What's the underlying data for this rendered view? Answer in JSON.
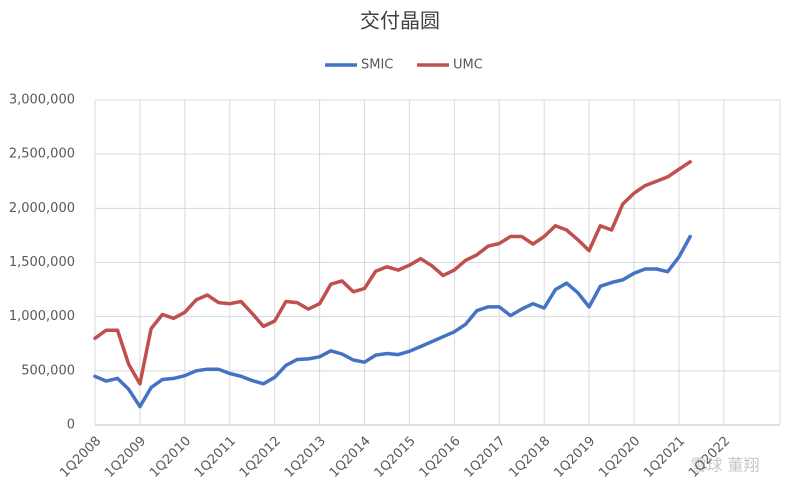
{
  "chart_data": {
    "type": "line",
    "title": "交付晶圆",
    "categories": [
      "1Q2008",
      null,
      null,
      null,
      "1Q2009",
      null,
      null,
      null,
      "1Q2010",
      null,
      null,
      null,
      "1Q2011",
      null,
      null,
      null,
      "1Q2012",
      null,
      null,
      null,
      "1Q2013",
      null,
      null,
      null,
      "1Q2014",
      null,
      null,
      null,
      "1Q2015",
      null,
      null,
      null,
      "1Q2016",
      null,
      null,
      null,
      "1Q2017",
      null,
      null,
      null,
      "1Q2018",
      null,
      null,
      null,
      "1Q2019",
      null,
      null,
      null,
      "1Q2020",
      null,
      null,
      null,
      "1Q2021",
      null,
      null,
      null,
      "1Q2022",
      null,
      null,
      null
    ],
    "series": [
      {
        "name": "SMIC",
        "color": "#4472c4",
        "values": [
          450000,
          405000,
          430000,
          330000,
          170000,
          345000,
          420000,
          430000,
          455000,
          500000,
          515000,
          515000,
          475000,
          450000,
          410000,
          380000,
          440000,
          550000,
          605000,
          610000,
          630000,
          685000,
          655000,
          600000,
          580000,
          645000,
          660000,
          650000,
          680000,
          725000,
          770000,
          815000,
          860000,
          930000,
          1055000,
          1090000,
          1090000,
          1010000,
          1070000,
          1120000,
          1080000,
          1250000,
          1310000,
          1220000,
          1090000,
          1280000,
          1315000,
          1340000,
          1400000,
          1440000,
          1440000,
          1415000,
          1550000,
          1740000,
          null,
          null,
          null,
          null,
          null,
          null
        ]
      },
      {
        "name": "UMC",
        "color": "#c0504d",
        "values": [
          800000,
          875000,
          875000,
          560000,
          380000,
          890000,
          1020000,
          985000,
          1040000,
          1155000,
          1200000,
          1130000,
          1120000,
          1140000,
          1030000,
          910000,
          960000,
          1140000,
          1130000,
          1070000,
          1120000,
          1300000,
          1330000,
          1230000,
          1260000,
          1420000,
          1460000,
          1430000,
          1475000,
          1535000,
          1470000,
          1380000,
          1430000,
          1520000,
          1570000,
          1650000,
          1675000,
          1740000,
          1740000,
          1670000,
          1740000,
          1840000,
          1800000,
          1710000,
          1610000,
          1840000,
          1800000,
          2040000,
          2140000,
          2210000,
          2250000,
          2290000,
          2360000,
          2430000,
          null,
          null,
          null,
          null,
          null,
          null
        ]
      }
    ],
    "ylim": [
      0,
      3000000
    ],
    "yticks": [
      0,
      {
        "value": 500000,
        "label": "500,000"
      },
      {
        "value": 1000000,
        "label": "1,000,000"
      },
      {
        "value": 1500000,
        "label": "1,500,000"
      },
      {
        "value": 2000000,
        "label": "2,000,000"
      },
      {
        "value": 2500000,
        "label": "2,500,000"
      },
      {
        "value": 3000000,
        "label": "3,000,000"
      }
    ],
    "grid": true,
    "legend": "top",
    "watermark": "雪球 董翔"
  }
}
